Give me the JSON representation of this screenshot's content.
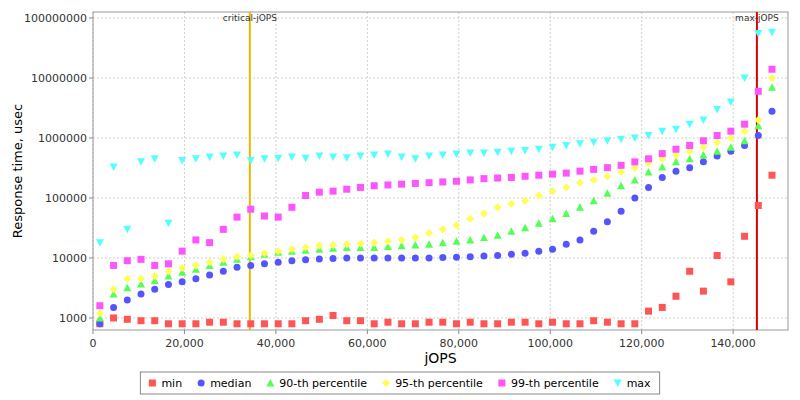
{
  "chart_data": {
    "type": "scatter",
    "x_label": "jOPS",
    "y_label": "Response time, usec",
    "log": "y",
    "grid": true,
    "legend": "bottom",
    "xlim": [
      0,
      152000
    ],
    "ylim": [
      630,
      126000000
    ],
    "xticks": [
      0,
      {
        "value": 20000,
        "label": "20,000"
      },
      {
        "value": 40000,
        "label": "40,000"
      },
      {
        "value": 60000,
        "label": "60,000"
      },
      {
        "value": 80000,
        "label": "80,000"
      },
      {
        "value": 100000,
        "label": "100,000"
      },
      {
        "value": 120000,
        "label": "120,000"
      },
      {
        "value": 140000,
        "label": "140,000"
      }
    ],
    "yticks": [
      1000,
      10000,
      100000,
      1000000,
      10000000,
      100000000
    ],
    "annotations": [
      {
        "label": "critical-jOPS",
        "x": 34300,
        "color": "#e8b800"
      },
      {
        "label": "max-jOPS",
        "x": 145200,
        "color": "#dd0000"
      }
    ],
    "x": [
      1500,
      4500,
      7500,
      10500,
      13500,
      16500,
      19500,
      22500,
      25500,
      28500,
      31500,
      34500,
      37500,
      40500,
      43500,
      46500,
      49500,
      52500,
      55500,
      58500,
      61500,
      64500,
      67500,
      70500,
      73500,
      76500,
      79500,
      82500,
      85500,
      88500,
      91500,
      94500,
      97500,
      100500,
      103500,
      106500,
      109500,
      112500,
      115500,
      118500,
      121500,
      124500,
      127500,
      130500,
      133500,
      136500,
      139500,
      142500,
      145500,
      148500
    ],
    "series": [
      {
        "name": "min",
        "color": "#ff5555",
        "marker": "square",
        "values": [
          800,
          1000,
          950,
          900,
          900,
          800,
          800,
          800,
          850,
          850,
          800,
          800,
          800,
          800,
          800,
          900,
          950,
          1100,
          900,
          900,
          800,
          850,
          800,
          800,
          850,
          850,
          800,
          850,
          800,
          800,
          850,
          850,
          800,
          850,
          800,
          800,
          900,
          850,
          800,
          800,
          1300,
          1500,
          2300,
          6000,
          2800,
          11000,
          4000,
          23000,
          75000,
          240000
        ]
      },
      {
        "name": "median",
        "color": "#5555ff",
        "marker": "circle",
        "values": [
          800,
          1500,
          2000,
          2500,
          3000,
          3600,
          4000,
          4500,
          5200,
          6000,
          7000,
          7500,
          8000,
          8500,
          9000,
          9300,
          9600,
          9800,
          10000,
          10000,
          10000,
          10000,
          10000,
          10000,
          10000,
          10200,
          10300,
          10500,
          10800,
          11000,
          11500,
          12000,
          13000,
          14000,
          17000,
          20000,
          28000,
          40000,
          60000,
          100000,
          150000,
          220000,
          280000,
          320000,
          400000,
          500000,
          600000,
          750000,
          1100000,
          2800000
        ]
      },
      {
        "name": "90-th percentile",
        "color": "#55ff55",
        "marker": "triangle",
        "values": [
          1000,
          2500,
          3200,
          3700,
          4200,
          5000,
          5800,
          6500,
          7500,
          8500,
          9500,
          10500,
          11500,
          12500,
          13000,
          13500,
          14000,
          14500,
          15000,
          15000,
          15000,
          15500,
          16000,
          16500,
          17000,
          18000,
          19000,
          20000,
          22000,
          24000,
          28000,
          32000,
          38000,
          45000,
          55000,
          70000,
          90000,
          120000,
          160000,
          200000,
          270000,
          330000,
          400000,
          450000,
          520000,
          600000,
          700000,
          900000,
          1600000,
          7000000
        ]
      },
      {
        "name": "95-th percentile",
        "color": "#ffff55",
        "marker": "diamond",
        "values": [
          1200,
          3000,
          4500,
          4500,
          5000,
          6000,
          6800,
          7500,
          8500,
          9500,
          10500,
          11000,
          12000,
          13000,
          14000,
          15000,
          16000,
          16500,
          17000,
          17500,
          18000,
          19000,
          20000,
          22000,
          26000,
          30000,
          35000,
          45000,
          55000,
          70000,
          80000,
          90000,
          110000,
          130000,
          150000,
          180000,
          200000,
          230000,
          270000,
          320000,
          380000,
          450000,
          520000,
          600000,
          700000,
          850000,
          1000000,
          1300000,
          2000000,
          10000000
        ]
      },
      {
        "name": "99-th percentile",
        "color": "#ff55ff",
        "marker": "square",
        "values": [
          1600,
          7500,
          9000,
          9500,
          7500,
          8000,
          13000,
          20000,
          18000,
          30000,
          48000,
          65000,
          50000,
          48000,
          70000,
          110000,
          125000,
          130000,
          140000,
          150000,
          160000,
          165000,
          170000,
          175000,
          180000,
          185000,
          190000,
          200000,
          210000,
          215000,
          220000,
          230000,
          240000,
          250000,
          260000,
          280000,
          300000,
          320000,
          350000,
          400000,
          450000,
          550000,
          650000,
          750000,
          900000,
          1100000,
          1300000,
          1700000,
          6000000,
          14000000
        ]
      },
      {
        "name": "max",
        "color": "#55ffff",
        "marker": "triangle-down",
        "values": [
          18000,
          330000,
          30000,
          400000,
          450000,
          38000,
          420000,
          450000,
          480000,
          500000,
          520000,
          420000,
          450000,
          460000,
          480000,
          460000,
          500000,
          480000,
          470000,
          500000,
          520000,
          540000,
          480000,
          450000,
          500000,
          520000,
          540000,
          560000,
          560000,
          580000,
          600000,
          620000,
          650000,
          700000,
          750000,
          800000,
          850000,
          900000,
          950000,
          1000000,
          1100000,
          1300000,
          1400000,
          1700000,
          2000000,
          3000000,
          4000000,
          10000000,
          55000000,
          58000000
        ]
      }
    ]
  }
}
